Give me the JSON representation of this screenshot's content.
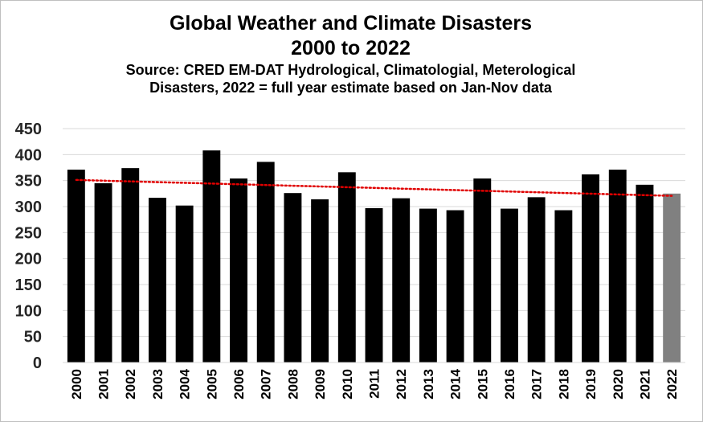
{
  "chart_data": {
    "type": "bar",
    "title": "Global Weather and Climate Disasters",
    "title_line2": "2000 to 2022",
    "subtitle_line1": "Source: CRED EM-DAT Hydrological, Climatologial, Meterological",
    "subtitle_line2": "Disasters, 2022 = full year estimate based on Jan-Nov data",
    "categories": [
      "2000",
      "2001",
      "2002",
      "2003",
      "2004",
      "2005",
      "2006",
      "2007",
      "2008",
      "2009",
      "2010",
      "2011",
      "2012",
      "2013",
      "2014",
      "2015",
      "2016",
      "2017",
      "2018",
      "2019",
      "2020",
      "2021",
      "2022"
    ],
    "values": [
      371,
      345,
      374,
      317,
      302,
      408,
      354,
      386,
      326,
      314,
      366,
      297,
      316,
      296,
      293,
      354,
      296,
      318,
      293,
      362,
      371,
      342,
      325
    ],
    "estimate_categories": [
      "2022"
    ],
    "ylim": [
      0,
      450
    ],
    "yticks": [
      0,
      50,
      100,
      150,
      200,
      250,
      300,
      350,
      400,
      450
    ],
    "xlabel": "",
    "ylabel": "",
    "grid": true,
    "legend": "none",
    "trendline": {
      "type": "linear",
      "style": "dotted"
    },
    "colors": {
      "bar": "#000000",
      "estimate_bar": "#808080",
      "trend": "#e00000",
      "grid": "#d9d9d9"
    }
  }
}
